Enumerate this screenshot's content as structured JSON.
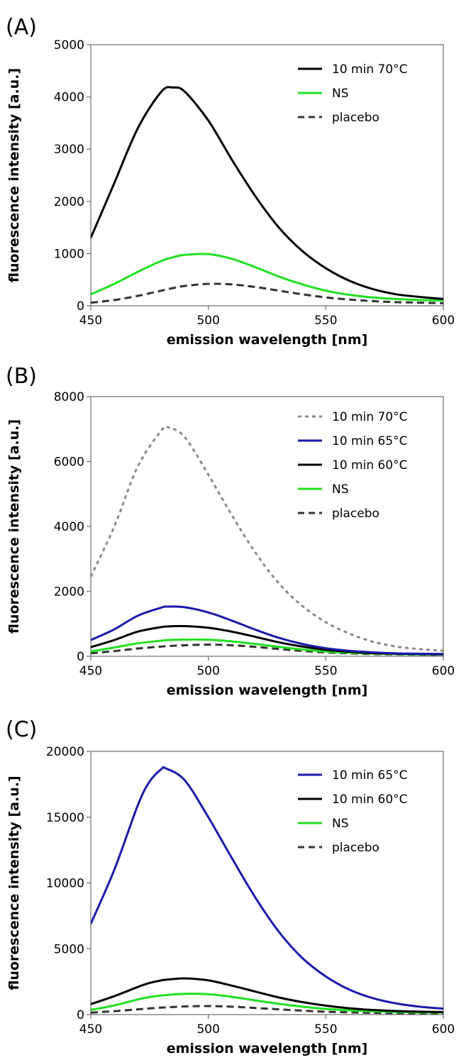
{
  "chart_data": [
    {
      "type": "line",
      "panel_label": "(A)",
      "xlabel": "emission wavelength [nm]",
      "ylabel": "fluorescence intensity [a.u.]",
      "xlim": [
        450,
        600
      ],
      "ylim": [
        0,
        5000
      ],
      "xticks": [
        450,
        500,
        550,
        600
      ],
      "yticks": [
        0,
        1000,
        2000,
        3000,
        4000,
        5000
      ],
      "x": [
        450,
        460,
        470,
        480,
        485,
        490,
        500,
        510,
        520,
        530,
        540,
        550,
        560,
        570,
        580,
        590,
        600
      ],
      "grid": false,
      "legend_position": "top-right",
      "series": [
        {
          "name": "10 min 70°C",
          "color": "#000000",
          "dash": "solid",
          "values": [
            1300,
            2350,
            3400,
            4100,
            4180,
            4100,
            3550,
            2800,
            2100,
            1500,
            1050,
            720,
            480,
            320,
            220,
            170,
            130
          ]
        },
        {
          "name": "NS",
          "color": "#22e022",
          "dash": "solid",
          "values": [
            220,
            420,
            650,
            860,
            930,
            975,
            990,
            900,
            740,
            560,
            410,
            290,
            210,
            160,
            130,
            110,
            100
          ]
        },
        {
          "name": "placebo",
          "color": "#333333",
          "dash": "dashed",
          "values": [
            60,
            110,
            190,
            290,
            340,
            380,
            420,
            410,
            360,
            290,
            220,
            160,
            120,
            90,
            70,
            60,
            50
          ]
        }
      ]
    },
    {
      "type": "line",
      "panel_label": "(B)",
      "xlabel": "emission wavelength [nm]",
      "ylabel": "fluorescence intensity [a.u.]",
      "xlim": [
        450,
        600
      ],
      "ylim": [
        0,
        8000
      ],
      "xticks": [
        450,
        500,
        550,
        600
      ],
      "yticks": [
        0,
        2000,
        4000,
        6000,
        8000
      ],
      "x": [
        450,
        460,
        470,
        480,
        483,
        490,
        500,
        510,
        520,
        530,
        540,
        550,
        560,
        570,
        580,
        590,
        600
      ],
      "grid": false,
      "legend_position": "top-right",
      "series": [
        {
          "name": "10 min 70°C",
          "color": "#888888",
          "dash": "dotted",
          "values": [
            2450,
            4000,
            5850,
            6950,
            7050,
            6750,
            5600,
            4350,
            3200,
            2250,
            1550,
            1050,
            700,
            450,
            300,
            220,
            170
          ]
        },
        {
          "name": "10 min 65°C",
          "color": "#1a1aaa",
          "dash": "solid",
          "values": [
            500,
            830,
            1250,
            1500,
            1530,
            1510,
            1350,
            1100,
            820,
            570,
            380,
            250,
            170,
            120,
            90,
            80,
            70
          ]
        },
        {
          "name": "10 min 60°C",
          "color": "#000000",
          "dash": "solid",
          "values": [
            280,
            500,
            760,
            900,
            920,
            930,
            880,
            760,
            600,
            430,
            300,
            200,
            140,
            100,
            80,
            70,
            60
          ]
        },
        {
          "name": "NS",
          "color": "#22e022",
          "dash": "solid",
          "values": [
            150,
            270,
            400,
            480,
            500,
            515,
            510,
            460,
            380,
            290,
            210,
            150,
            110,
            85,
            70,
            60,
            55
          ]
        },
        {
          "name": "placebo",
          "color": "#333333",
          "dash": "dashed",
          "values": [
            90,
            160,
            240,
            300,
            315,
            340,
            360,
            340,
            290,
            225,
            165,
            120,
            90,
            70,
            60,
            50,
            45
          ]
        }
      ]
    },
    {
      "type": "line",
      "panel_label": "(C)",
      "xlabel": "emission wavelength [nm]",
      "ylabel": "fluorescence intensity [a.u.]",
      "xlim": [
        450,
        600
      ],
      "ylim": [
        0,
        20000
      ],
      "xticks": [
        450,
        500,
        550,
        600
      ],
      "yticks": [
        0,
        5000,
        10000,
        15000,
        20000
      ],
      "x": [
        450,
        460,
        470,
        475,
        480,
        482,
        490,
        500,
        510,
        520,
        530,
        540,
        550,
        560,
        570,
        580,
        590,
        600
      ],
      "grid": false,
      "legend_position": "top-right",
      "series": [
        {
          "name": "10 min 65°C",
          "color": "#1a1aaa",
          "dash": "solid",
          "values": [
            6900,
            11000,
            15900,
            17700,
            18650,
            18700,
            17800,
            15000,
            11900,
            8900,
            6300,
            4300,
            2900,
            1900,
            1250,
            850,
            600,
            450
          ]
        },
        {
          "name": "10 min 60°C",
          "color": "#000000",
          "dash": "solid",
          "values": [
            800,
            1400,
            2100,
            2400,
            2600,
            2650,
            2750,
            2600,
            2200,
            1750,
            1300,
            950,
            680,
            480,
            350,
            270,
            220,
            190
          ]
        },
        {
          "name": "NS",
          "color": "#22e022",
          "dash": "solid",
          "values": [
            350,
            700,
            1150,
            1330,
            1450,
            1480,
            1580,
            1550,
            1350,
            1080,
            820,
            600,
            430,
            320,
            250,
            200,
            170,
            150
          ]
        },
        {
          "name": "placebo",
          "color": "#333333",
          "dash": "dashed",
          "values": [
            150,
            260,
            400,
            470,
            530,
            550,
            620,
            650,
            600,
            500,
            400,
            300,
            220,
            170,
            130,
            110,
            95,
            85
          ]
        }
      ]
    }
  ]
}
